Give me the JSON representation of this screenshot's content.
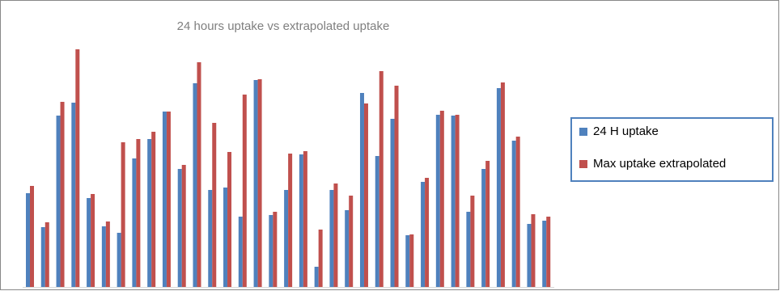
{
  "chart_data": {
    "type": "bar",
    "title": "24 hours uptake vs extrapolated uptake",
    "categories": [
      null,
      null,
      null,
      null,
      null,
      null,
      null,
      null,
      null,
      null,
      null,
      null,
      null,
      null,
      null,
      null,
      null,
      null,
      null,
      null,
      null,
      null,
      null,
      null,
      null,
      null,
      null,
      null,
      null,
      null,
      null,
      null,
      null,
      null,
      null
    ],
    "series": [
      {
        "name": "24 H uptake",
        "color": "#4f81bd",
        "values": [
          116,
          74,
          212,
          228,
          110,
          75,
          67,
          159,
          183,
          217,
          146,
          252,
          120,
          123,
          87,
          256,
          89,
          120,
          164,
          25,
          120,
          95,
          240,
          162,
          208,
          64,
          130,
          213,
          212,
          93,
          146,
          246,
          181,
          78,
          82
        ]
      },
      {
        "name": "Max uptake extrapolated",
        "color": "#c0504d",
        "values": [
          125,
          80,
          229,
          294,
          115,
          81,
          179,
          183,
          192,
          217,
          151,
          278,
          203,
          167,
          238,
          257,
          93,
          165,
          168,
          71,
          128,
          113,
          227,
          267,
          249,
          65,
          135,
          218,
          213,
          113,
          156,
          253,
          186,
          90,
          87
        ]
      }
    ],
    "ylim": [
      0,
      300
    ],
    "legend": "right"
  }
}
